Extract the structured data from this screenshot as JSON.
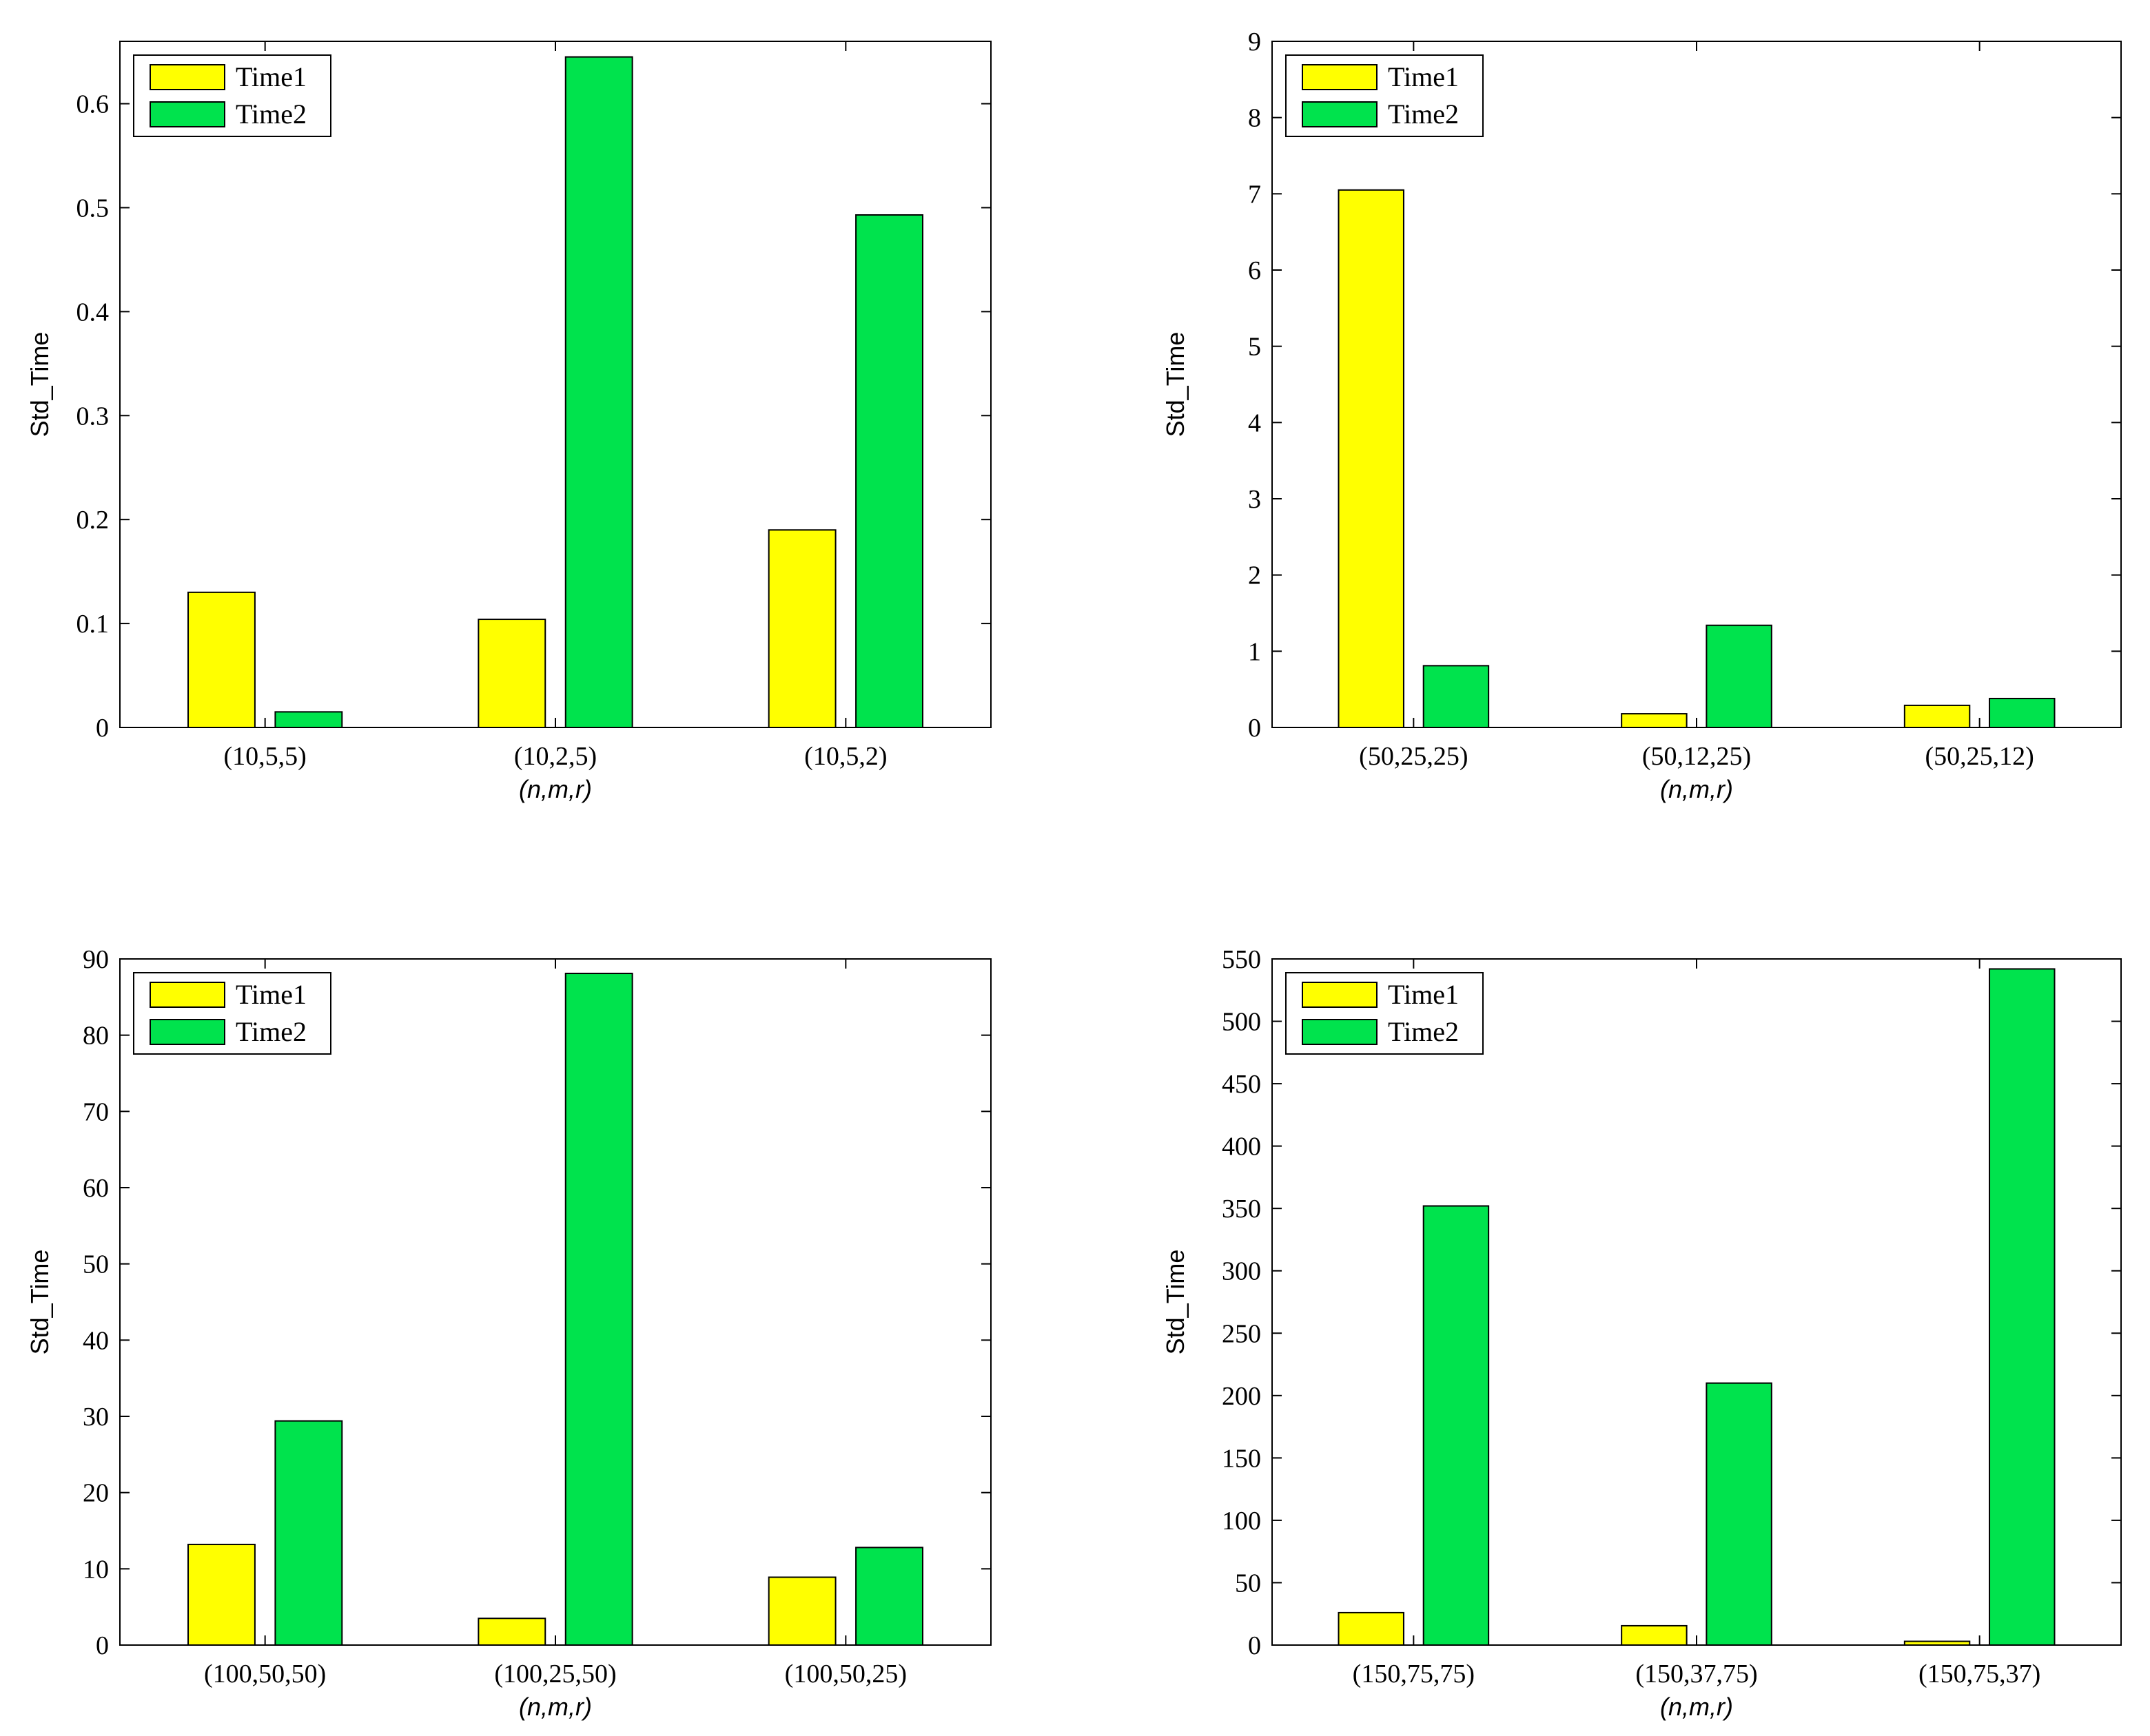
{
  "colors": {
    "time1": "#ffff00",
    "time2": "#00e34d",
    "axis": "#000000",
    "background": "#ffffff"
  },
  "chart_data": [
    {
      "type": "bar",
      "ylabel": "Std_Time",
      "xlabel": "(n,m,r)",
      "categories": [
        "(10,5,5)",
        "(10,2,5)",
        "(10,5,2)"
      ],
      "series": [
        {
          "name": "Time1",
          "values": [
            0.13,
            0.104,
            0.19
          ]
        },
        {
          "name": "Time2",
          "values": [
            0.015,
            0.645,
            0.493
          ]
        }
      ],
      "ylim": [
        0,
        0.66
      ],
      "yticks": [
        0,
        0.1,
        0.2,
        0.3,
        0.4,
        0.5,
        0.6
      ],
      "ytick_labels": [
        "0",
        "0.1",
        "0.2",
        "0.3",
        "0.4",
        "0.5",
        "0.6"
      ],
      "legend": "top-left"
    },
    {
      "type": "bar",
      "ylabel": "Std_Time",
      "xlabel": "(n,m,r)",
      "categories": [
        "(50,25,25)",
        "(50,12,25)",
        "(50,25,12)"
      ],
      "series": [
        {
          "name": "Time1",
          "values": [
            7.05,
            0.18,
            0.29
          ]
        },
        {
          "name": "Time2",
          "values": [
            0.81,
            1.34,
            0.38
          ]
        }
      ],
      "ylim": [
        0,
        9
      ],
      "yticks": [
        0,
        1,
        2,
        3,
        4,
        5,
        6,
        7,
        8,
        9
      ],
      "ytick_labels": [
        "0",
        "1",
        "2",
        "3",
        "4",
        "5",
        "6",
        "7",
        "8",
        "9"
      ],
      "legend": "top-left"
    },
    {
      "type": "bar",
      "ylabel": "Std_Time",
      "xlabel": "(n,m,r)",
      "categories": [
        "(100,50,50)",
        "(100,25,50)",
        "(100,50,25)"
      ],
      "series": [
        {
          "name": "Time1",
          "values": [
            13.2,
            3.5,
            8.9
          ]
        },
        {
          "name": "Time2",
          "values": [
            29.4,
            88.1,
            12.8
          ]
        }
      ],
      "ylim": [
        0,
        90
      ],
      "yticks": [
        0,
        10,
        20,
        30,
        40,
        50,
        60,
        70,
        80,
        90
      ],
      "ytick_labels": [
        "0",
        "10",
        "20",
        "30",
        "40",
        "50",
        "60",
        "70",
        "80",
        "90"
      ],
      "legend": "top-left"
    },
    {
      "type": "bar",
      "ylabel": "Std_Time",
      "xlabel": "(n,m,r)",
      "categories": [
        "(150,75,75)",
        "(150,37,75)",
        "(150,75,37)"
      ],
      "series": [
        {
          "name": "Time1",
          "values": [
            26,
            15.5,
            3
          ]
        },
        {
          "name": "Time2",
          "values": [
            352,
            210,
            542
          ]
        }
      ],
      "ylim": [
        0,
        550
      ],
      "yticks": [
        0,
        50,
        100,
        150,
        200,
        250,
        300,
        350,
        400,
        450,
        500,
        550
      ],
      "ytick_labels": [
        "0",
        "50",
        "100",
        "150",
        "200",
        "250",
        "300",
        "350",
        "400",
        "450",
        "500",
        "550"
      ],
      "legend": "top-left"
    }
  ]
}
